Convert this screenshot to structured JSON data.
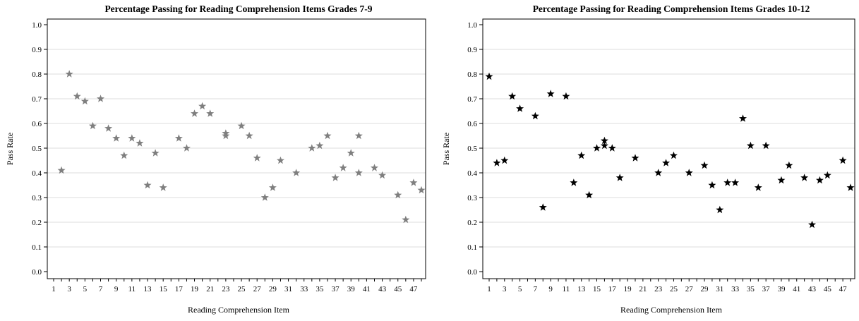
{
  "chart_data": [
    {
      "type": "scatter",
      "title": "Percentage Passing for Reading Comprehension Items Grades 7-9",
      "xlabel": "Reading Comprehension Item",
      "ylabel": "Pass Rate",
      "xlim": [
        1,
        48
      ],
      "ylim": [
        0,
        1
      ],
      "xticks": [
        "1",
        "3",
        "5",
        "7",
        "9",
        "11",
        "13",
        "15",
        "17",
        "19",
        "21",
        "23",
        "25",
        "27",
        "29",
        "31",
        "33",
        "35",
        "37",
        "39",
        "41",
        "43",
        "45",
        "47"
      ],
      "yticks": [
        "0.0",
        "0.1",
        "0.2",
        "0.3",
        "0.4",
        "0.5",
        "0.6",
        "0.7",
        "0.8",
        "0.9",
        "1.0"
      ],
      "grid": "horizontal",
      "marker": "star",
      "marker_color": "#7f7f7f",
      "points": [
        [
          2,
          0.41
        ],
        [
          3,
          0.8
        ],
        [
          4,
          0.71
        ],
        [
          5,
          0.69
        ],
        [
          6,
          0.59
        ],
        [
          7,
          0.7
        ],
        [
          8,
          0.58
        ],
        [
          9,
          0.54
        ],
        [
          10,
          0.47
        ],
        [
          11,
          0.54
        ],
        [
          12,
          0.52
        ],
        [
          13,
          0.35
        ],
        [
          14,
          0.48
        ],
        [
          15,
          0.34
        ],
        [
          17,
          0.54
        ],
        [
          18,
          0.5
        ],
        [
          19,
          0.64
        ],
        [
          20,
          0.67
        ],
        [
          21,
          0.64
        ],
        [
          23,
          0.56
        ],
        [
          23,
          0.55
        ],
        [
          25,
          0.59
        ],
        [
          26,
          0.55
        ],
        [
          27,
          0.46
        ],
        [
          28,
          0.3
        ],
        [
          29,
          0.34
        ],
        [
          30,
          0.45
        ],
        [
          32,
          0.4
        ],
        [
          34,
          0.5
        ],
        [
          35,
          0.51
        ],
        [
          36,
          0.55
        ],
        [
          37,
          0.38
        ],
        [
          38,
          0.42
        ],
        [
          39,
          0.48
        ],
        [
          40,
          0.55
        ],
        [
          40,
          0.4
        ],
        [
          42,
          0.42
        ],
        [
          43,
          0.39
        ],
        [
          45,
          0.31
        ],
        [
          46,
          0.21
        ],
        [
          47,
          0.36
        ],
        [
          48,
          0.33
        ]
      ]
    },
    {
      "type": "scatter",
      "title": "Percentage Passing for Reading Comprehension Items Grades 10-12",
      "xlabel": "Reading Comprehension Item",
      "ylabel": "Pass Rate",
      "xlim": [
        1,
        48
      ],
      "ylim": [
        0,
        1
      ],
      "xticks": [
        "1",
        "3",
        "5",
        "7",
        "9",
        "11",
        "13",
        "15",
        "17",
        "19",
        "21",
        "23",
        "25",
        "27",
        "29",
        "31",
        "33",
        "35",
        "37",
        "39",
        "41",
        "43",
        "45",
        "47"
      ],
      "yticks": [
        "0.0",
        "0.1",
        "0.2",
        "0.3",
        "0.4",
        "0.5",
        "0.6",
        "0.7",
        "0.8",
        "0.9",
        "1.0"
      ],
      "grid": "horizontal",
      "marker": "star",
      "marker_color": "#000000",
      "points": [
        [
          1,
          0.79
        ],
        [
          2,
          0.44
        ],
        [
          3,
          0.45
        ],
        [
          4,
          0.71
        ],
        [
          5,
          0.66
        ],
        [
          7,
          0.63
        ],
        [
          8,
          0.26
        ],
        [
          9,
          0.72
        ],
        [
          11,
          0.71
        ],
        [
          12,
          0.36
        ],
        [
          13,
          0.47
        ],
        [
          14,
          0.31
        ],
        [
          15,
          0.5
        ],
        [
          16,
          0.53
        ],
        [
          16,
          0.51
        ],
        [
          17,
          0.5
        ],
        [
          18,
          0.38
        ],
        [
          20,
          0.46
        ],
        [
          23,
          0.4
        ],
        [
          24,
          0.44
        ],
        [
          25,
          0.47
        ],
        [
          27,
          0.4
        ],
        [
          29,
          0.43
        ],
        [
          30,
          0.35
        ],
        [
          31,
          0.25
        ],
        [
          32,
          0.36
        ],
        [
          33,
          0.36
        ],
        [
          34,
          0.62
        ],
        [
          35,
          0.51
        ],
        [
          36,
          0.34
        ],
        [
          37,
          0.51
        ],
        [
          39,
          0.37
        ],
        [
          40,
          0.43
        ],
        [
          42,
          0.38
        ],
        [
          43,
          0.19
        ],
        [
          44,
          0.37
        ],
        [
          45,
          0.39
        ],
        [
          47,
          0.45
        ],
        [
          48,
          0.34
        ]
      ]
    }
  ]
}
